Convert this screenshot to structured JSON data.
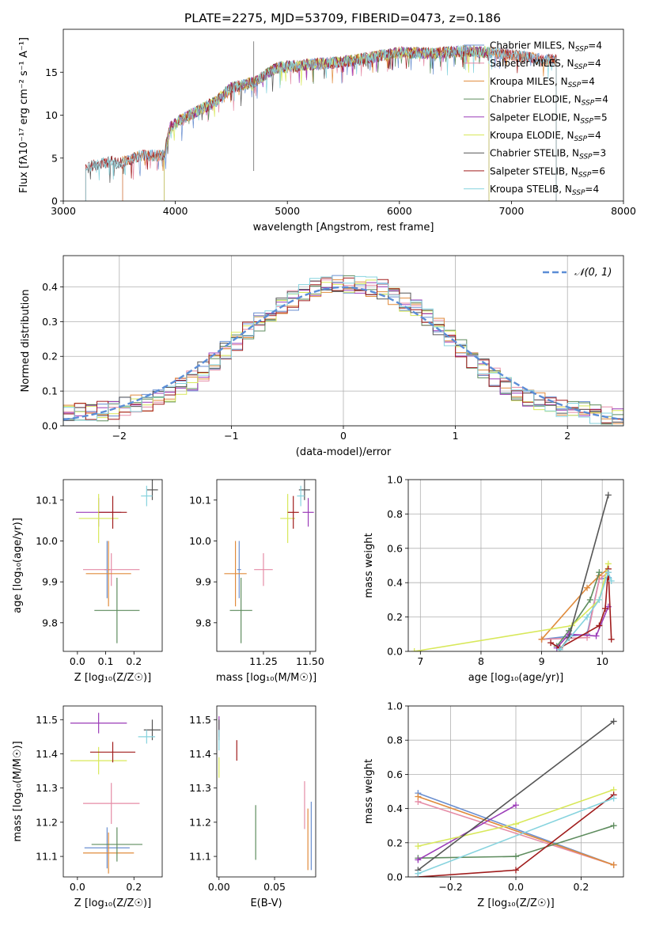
{
  "colors": {
    "Chabrier MILES": "#6a8fd0",
    "Salpeter MILES": "#e58ca6",
    "Kroupa MILES": "#e08b3c",
    "Chabrier ELODIE": "#5e8c5e",
    "Salpeter ELODIE": "#9b3cb8",
    "Kroupa ELODIE": "#d8e85a",
    "Chabrier STELIB": "#555555",
    "Salpeter STELIB": "#a01c1c",
    "Kroupa STELIB": "#86d3de",
    "gauss": "#5b8dd6"
  },
  "chart_data": [
    {
      "type": "line",
      "title": "PLATE=2275, MJD=53709, FIBERID=0473, z=0.186",
      "xlabel": "wavelength [Angstrom, rest frame]",
      "ylabel": "Flux [fλ10⁻¹⁷ erg cm⁻² s⁻¹ A⁻¹]",
      "xlim": [
        3000,
        8000
      ],
      "ylim": [
        0,
        20
      ],
      "xticks": [
        "3000",
        "4000",
        "5000",
        "6000",
        "7000",
        "8000"
      ],
      "yticks": [
        "0",
        "5",
        "10",
        "15"
      ],
      "legend_position": "top-right",
      "spectrum_envelope": {
        "x": [
          3200,
          3300,
          3400,
          3500,
          3700,
          3900,
          3950,
          4050,
          4200,
          4350,
          4500,
          4700,
          4900,
          5100,
          5300,
          5500,
          5700,
          6000,
          6300,
          6600,
          6900,
          7200,
          7500
        ],
        "y": [
          3.8,
          4.3,
          4.6,
          4.4,
          5.3,
          5.3,
          8.5,
          9.5,
          10.5,
          11.5,
          13.2,
          13.8,
          15.5,
          15.8,
          16.0,
          16.2,
          16.6,
          17.3,
          17.2,
          17.5,
          17.2,
          16.6,
          16.2
        ]
      },
      "series": [
        {
          "name": "Chabrier MILES",
          "nssp": "4",
          "x_range": [
            3530,
            7400
          ]
        },
        {
          "name": "Salpeter MILES",
          "nssp": "4",
          "x_range": [
            3530,
            7400
          ]
        },
        {
          "name": "Kroupa MILES",
          "nssp": "4",
          "x_range": [
            3530,
            7400
          ]
        },
        {
          "name": "Chabrier ELODIE",
          "nssp": "4",
          "x_range": [
            3900,
            6800
          ]
        },
        {
          "name": "Salpeter ELODIE",
          "nssp": "5",
          "x_range": [
            3900,
            6800
          ]
        },
        {
          "name": "Kroupa ELODIE",
          "nssp": "4",
          "x_range": [
            3900,
            6800
          ]
        },
        {
          "name": "Chabrier STELIB",
          "nssp": "3",
          "x_range": [
            3200,
            7400
          ]
        },
        {
          "name": "Salpeter STELIB",
          "nssp": "6",
          "x_range": [
            3200,
            7400
          ]
        },
        {
          "name": "Kroupa STELIB",
          "nssp": "4",
          "x_range": [
            3200,
            7400
          ]
        }
      ]
    },
    {
      "type": "histogram",
      "xlabel": "(data-model)/error",
      "ylabel": "Normed distribution",
      "xlim": [
        -2.5,
        2.5
      ],
      "ylim": [
        0,
        0.49
      ],
      "xticks": [
        "−2",
        "−1",
        "0",
        "1",
        "2"
      ],
      "yticks": [
        "0.0",
        "0.1",
        "0.2",
        "0.3",
        "0.4"
      ],
      "grid": true,
      "legend_position": "top-right",
      "reference_curve": {
        "name": "𝒩(0, 1)",
        "mean": 0,
        "sigma": 1
      },
      "bin_width": 0.1,
      "envelope": {
        "x": [
          -2.5,
          -2.0,
          -1.6,
          -1.3,
          -1.0,
          -0.7,
          -0.5,
          -0.3,
          -0.1,
          0.1,
          0.3,
          0.5,
          0.7,
          1.0,
          1.3,
          1.6,
          2.0,
          2.5
        ],
        "y": [
          0.03,
          0.05,
          0.08,
          0.14,
          0.23,
          0.31,
          0.35,
          0.39,
          0.41,
          0.41,
          0.4,
          0.37,
          0.33,
          0.24,
          0.15,
          0.09,
          0.05,
          0.02
        ]
      }
    },
    {
      "type": "scatter",
      "xlabel": "Z [log₁₀(Z/Z☉)]",
      "ylabel": "age  [log₁₀(age/yr)]",
      "xlim": [
        -0.05,
        0.3
      ],
      "ylim": [
        9.73,
        10.15
      ],
      "xticks": [
        "0.0",
        "0.1",
        "0.2"
      ],
      "yticks": [
        "9.8",
        "9.9",
        "10.0",
        "10.1"
      ],
      "points": [
        {
          "series": "Chabrier MILES",
          "x": 0.105,
          "y": 9.93,
          "xerr": 0.01,
          "yerr": 0.07
        },
        {
          "series": "Salpeter MILES",
          "x": 0.12,
          "y": 9.93,
          "xerr": 0.1,
          "yerr": 0.04
        },
        {
          "series": "Kroupa MILES",
          "x": 0.11,
          "y": 9.92,
          "xerr": 0.08,
          "yerr": 0.08
        },
        {
          "series": "Chabrier ELODIE",
          "x": 0.14,
          "y": 9.83,
          "xerr": 0.08,
          "yerr": 0.08
        },
        {
          "series": "Salpeter ELODIE",
          "x": 0.075,
          "y": 10.07,
          "xerr": 0.08,
          "yerr": 0.035
        },
        {
          "series": "Kroupa ELODIE",
          "x": 0.075,
          "y": 10.055,
          "xerr": 0.07,
          "yerr": 0.06
        },
        {
          "series": "Chabrier STELIB",
          "x": 0.265,
          "y": 10.125,
          "xerr": 0.02,
          "yerr": 0.025
        },
        {
          "series": "Salpeter STELIB",
          "x": 0.125,
          "y": 10.07,
          "xerr": 0.05,
          "yerr": 0.04
        },
        {
          "series": "Kroupa STELIB",
          "x": 0.245,
          "y": 10.11,
          "xerr": 0.02,
          "yerr": 0.025
        }
      ]
    },
    {
      "type": "scatter",
      "xlabel": "mass [log₁₀(M/M☉)]",
      "ylabel": "",
      "xlim": [
        11.0,
        11.53
      ],
      "ylim": [
        9.73,
        10.15
      ],
      "xticks": [
        "11.25",
        "11.50"
      ],
      "yticks": [
        "9.8",
        "9.9",
        "10.0",
        "10.1"
      ],
      "points": [
        {
          "series": "Chabrier MILES",
          "x": 11.12,
          "y": 9.93,
          "xerr": 0.01,
          "yerr": 0.07
        },
        {
          "series": "Salpeter MILES",
          "x": 11.25,
          "y": 9.93,
          "xerr": 0.05,
          "yerr": 0.04
        },
        {
          "series": "Kroupa MILES",
          "x": 11.1,
          "y": 9.92,
          "xerr": 0.06,
          "yerr": 0.08
        },
        {
          "series": "Chabrier ELODIE",
          "x": 11.13,
          "y": 9.83,
          "xerr": 0.06,
          "yerr": 0.08
        },
        {
          "series": "Salpeter ELODIE",
          "x": 11.49,
          "y": 10.07,
          "xerr": 0.03,
          "yerr": 0.035
        },
        {
          "series": "Kroupa ELODIE",
          "x": 11.38,
          "y": 10.055,
          "xerr": 0.04,
          "yerr": 0.06
        },
        {
          "series": "Chabrier STELIB",
          "x": 11.47,
          "y": 10.125,
          "xerr": 0.03,
          "yerr": 0.025
        },
        {
          "series": "Salpeter STELIB",
          "x": 11.41,
          "y": 10.07,
          "xerr": 0.03,
          "yerr": 0.04
        },
        {
          "series": "Kroupa STELIB",
          "x": 11.45,
          "y": 10.11,
          "xerr": 0.02,
          "yerr": 0.025
        }
      ]
    },
    {
      "type": "line",
      "xlabel": "age  [log₁₀(age/yr)]",
      "ylabel": "mass weight",
      "xlim": [
        6.8,
        10.35
      ],
      "ylim": [
        0,
        1
      ],
      "xticks": [
        "7",
        "8",
        "9",
        "10"
      ],
      "yticks": [
        "0.0",
        "0.2",
        "0.4",
        "0.6",
        "0.8",
        "1.0"
      ],
      "grid": true,
      "series": [
        {
          "name": "Chabrier MILES",
          "x": [
            9.0,
            9.75,
            9.95,
            10.1
          ],
          "y": [
            0.07,
            0.1,
            0.42,
            0.43
          ]
        },
        {
          "name": "Salpeter MILES",
          "x": [
            9.0,
            9.75,
            9.95,
            10.1
          ],
          "y": [
            0.07,
            0.08,
            0.42,
            0.46
          ]
        },
        {
          "name": "Kroupa MILES",
          "x": [
            9.0,
            9.75,
            9.95,
            10.1
          ],
          "y": [
            0.07,
            0.37,
            0.44,
            0.48
          ]
        },
        {
          "name": "Chabrier ELODIE",
          "x": [
            9.25,
            9.45,
            9.8,
            9.95
          ],
          "y": [
            0.03,
            0.12,
            0.3,
            0.46
          ]
        },
        {
          "name": "Salpeter ELODIE",
          "x": [
            9.25,
            9.45,
            9.9,
            10.1
          ],
          "y": [
            0.02,
            0.1,
            0.09,
            0.26
          ]
        },
        {
          "name": "Kroupa ELODIE",
          "x": [
            6.9,
            9.5,
            9.95,
            10.1
          ],
          "y": [
            0.0,
            0.15,
            0.3,
            0.51
          ]
        },
        {
          "name": "Chabrier STELIB",
          "x": [
            9.3,
            9.45,
            10.1
          ],
          "y": [
            0.01,
            0.08,
            0.91
          ]
        },
        {
          "name": "Salpeter STELIB",
          "x": [
            9.15,
            9.3,
            9.95,
            10.05,
            10.1,
            10.15
          ],
          "y": [
            0.05,
            0.02,
            0.15,
            0.25,
            0.48,
            0.07
          ]
        },
        {
          "name": "Kroupa STELIB",
          "x": [
            9.3,
            9.75,
            9.95,
            10.1,
            10.15
          ],
          "y": [
            0.01,
            0.2,
            0.3,
            0.46,
            0.41
          ]
        }
      ]
    },
    {
      "type": "scatter",
      "xlabel": "Z [log₁₀(Z/Z☉)]",
      "ylabel": "mass [log₁₀(M/M☉)]",
      "xlim": [
        -0.05,
        0.3
      ],
      "ylim": [
        11.04,
        11.54
      ],
      "xticks": [
        "0.0",
        "0.2"
      ],
      "yticks": [
        "11.1",
        "11.2",
        "11.3",
        "11.4",
        "11.5"
      ],
      "points": [
        {
          "series": "Chabrier MILES",
          "x": 0.105,
          "y": 11.125,
          "xerr": 0.08,
          "yerr": 0.06
        },
        {
          "series": "Salpeter MILES",
          "x": 0.12,
          "y": 11.255,
          "xerr": 0.1,
          "yerr": 0.06
        },
        {
          "series": "Kroupa MILES",
          "x": 0.11,
          "y": 11.11,
          "xerr": 0.09,
          "yerr": 0.06
        },
        {
          "series": "Chabrier ELODIE",
          "x": 0.14,
          "y": 11.135,
          "xerr": 0.09,
          "yerr": 0.05
        },
        {
          "series": "Salpeter ELODIE",
          "x": 0.075,
          "y": 11.49,
          "xerr": 0.1,
          "yerr": 0.03
        },
        {
          "series": "Kroupa ELODIE",
          "x": 0.075,
          "y": 11.38,
          "xerr": 0.1,
          "yerr": 0.04
        },
        {
          "series": "Chabrier STELIB",
          "x": 0.265,
          "y": 11.47,
          "xerr": 0.03,
          "yerr": 0.03
        },
        {
          "series": "Salpeter STELIB",
          "x": 0.125,
          "y": 11.405,
          "xerr": 0.08,
          "yerr": 0.03
        },
        {
          "series": "Kroupa STELIB",
          "x": 0.245,
          "y": 11.45,
          "xerr": 0.03,
          "yerr": 0.02
        }
      ]
    },
    {
      "type": "scatter",
      "xlabel": "E(B-V)",
      "ylabel": "",
      "xlim": [
        -0.002,
        0.087
      ],
      "ylim": [
        11.04,
        11.54
      ],
      "xticks": [
        "0.00",
        "0.05"
      ],
      "yticks": [
        "11.1",
        "11.2",
        "11.3",
        "11.4",
        "11.5"
      ],
      "points": [
        {
          "series": "Chabrier MILES",
          "x": 0.083,
          "y": 11.16,
          "yerr": 0.1
        },
        {
          "series": "Salpeter MILES",
          "x": 0.077,
          "y": 11.25,
          "yerr": 0.07
        },
        {
          "series": "Kroupa MILES",
          "x": 0.08,
          "y": 11.15,
          "yerr": 0.09
        },
        {
          "series": "Chabrier ELODIE",
          "x": 0.033,
          "y": 11.17,
          "yerr": 0.08
        },
        {
          "series": "Salpeter ELODIE",
          "x": 0.0,
          "y": 11.48,
          "yerr": 0.03
        },
        {
          "series": "Kroupa ELODIE",
          "x": 0.0,
          "y": 11.36,
          "yerr": 0.03
        },
        {
          "series": "Chabrier STELIB",
          "x": 0.0,
          "y": 11.47,
          "yerr": 0.03
        },
        {
          "series": "Salpeter STELIB",
          "x": 0.016,
          "y": 11.41,
          "yerr": 0.03
        },
        {
          "series": "Kroupa STELIB",
          "x": 0.0,
          "y": 11.44,
          "yerr": 0.03
        }
      ]
    },
    {
      "type": "line",
      "xlabel": "Z [log₁₀(Z/Z☉)]",
      "ylabel": "mass weight",
      "xlim": [
        -0.33,
        0.33
      ],
      "ylim": [
        0,
        1
      ],
      "xticks": [
        "−0.2",
        "0.0",
        "0.2"
      ],
      "yticks": [
        "0.0",
        "0.2",
        "0.4",
        "0.6",
        "0.8",
        "1.0"
      ],
      "grid": true,
      "series": [
        {
          "name": "Chabrier MILES",
          "x": [
            -0.3,
            0.3
          ],
          "y": [
            0.49,
            0.07
          ]
        },
        {
          "name": "Salpeter MILES",
          "x": [
            -0.3,
            0.3
          ],
          "y": [
            0.44,
            0.07
          ]
        },
        {
          "name": "Kroupa MILES",
          "x": [
            -0.3,
            0.3
          ],
          "y": [
            0.47,
            0.07
          ]
        },
        {
          "name": "Chabrier ELODIE",
          "x": [
            -0.3,
            0.0,
            0.3
          ],
          "y": [
            0.11,
            0.12,
            0.3
          ]
        },
        {
          "name": "Salpeter ELODIE",
          "x": [
            -0.3,
            0.0
          ],
          "y": [
            0.1,
            0.42
          ]
        },
        {
          "name": "Kroupa ELODIE",
          "x": [
            -0.3,
            0.0,
            0.3
          ],
          "y": [
            0.18,
            0.31,
            0.51
          ]
        },
        {
          "name": "Chabrier STELIB",
          "x": [
            -0.3,
            0.3
          ],
          "y": [
            0.04,
            0.91
          ]
        },
        {
          "name": "Salpeter STELIB",
          "x": [
            -0.3,
            0.0,
            0.3
          ],
          "y": [
            0.0,
            0.04,
            0.48
          ]
        },
        {
          "name": "Kroupa STELIB",
          "x": [
            -0.3,
            0.3
          ],
          "y": [
            0.02,
            0.46
          ]
        }
      ]
    }
  ]
}
